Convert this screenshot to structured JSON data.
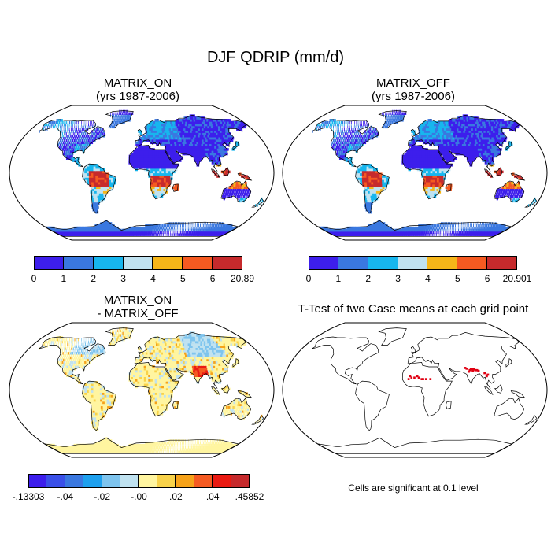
{
  "title": "DJF QDRIP (mm/d)",
  "panels": [
    {
      "id": "p1",
      "title_lines": [
        "MATRIX_ON",
        "(yrs 1987-2006)"
      ],
      "colorbar": {
        "colors": [
          "#3d1eec",
          "#3a78e0",
          "#17b6ee",
          "#c0e2f0",
          "#f6b619",
          "#f55a21",
          "#c62a2c"
        ],
        "labels": [
          "0",
          "1",
          "2",
          "3",
          "4",
          "5",
          "6",
          "20.89"
        ]
      }
    },
    {
      "id": "p2",
      "title_lines": [
        "MATRIX_OFF",
        "(yrs 1987-2006)"
      ],
      "colorbar": {
        "colors": [
          "#3d1eec",
          "#3a78e0",
          "#17b6ee",
          "#c0e2f0",
          "#f6b619",
          "#f55a21",
          "#c62a2c"
        ],
        "labels": [
          "0",
          "1",
          "2",
          "3",
          "4",
          "5",
          "6",
          "20.901"
        ]
      }
    },
    {
      "id": "p3",
      "title_lines": [
        "MATRIX_ON",
        "- MATRIX_OFF"
      ],
      "colorbar": {
        "colors": [
          "#3d1eec",
          "#3a50e8",
          "#3a78e0",
          "#1ea0ee",
          "#7ec4ee",
          "#c0e2f0",
          "#fff5a0",
          "#f8d24a",
          "#f6a219",
          "#f55a21",
          "#ea1a12",
          "#c62a2c"
        ],
        "labels": [
          "-.13303",
          "-.04",
          "-.02",
          "-.00",
          ".02",
          ".04",
          ".45852"
        ]
      }
    },
    {
      "id": "p4",
      "title_lines": [
        "T-Test of two Case means at each grid point"
      ]
    }
  ],
  "footnote": "Cells are significant at 0.1 level",
  "colors": {
    "land_outline": "#000000",
    "significant": "#e00012"
  }
}
